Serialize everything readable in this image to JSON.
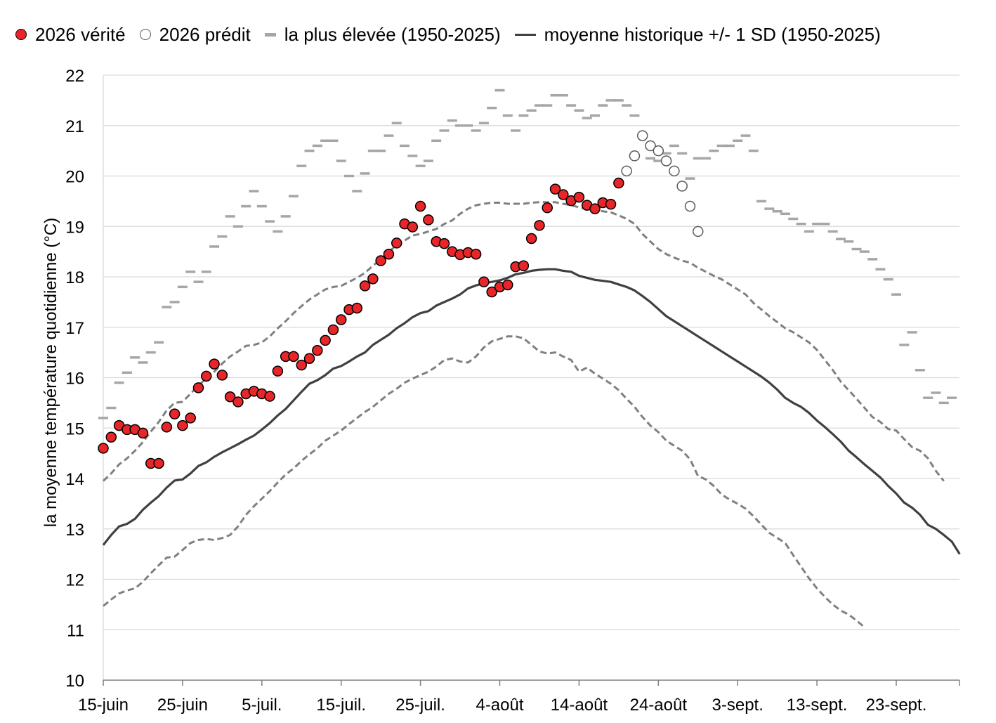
{
  "legend": {
    "truth": "2026 vérité",
    "predicted": "2026 prédit",
    "highest": "la plus élevée (1950-2025)",
    "mean": "moyenne historique +/- 1 SD (1950-2025)"
  },
  "colors": {
    "truth_fill": "#e8262a",
    "predicted_fill": "#ffffff",
    "highest": "#a6a6a6",
    "mean": "#404040",
    "sd": "#808080",
    "grid": "#d9d9d9"
  },
  "chart_data": {
    "type": "line",
    "title": "",
    "ylabel": "la moyenne température quotidienne (°C)",
    "xlabel": "",
    "ylim": [
      10,
      22
    ],
    "yticks": [
      10,
      11,
      12,
      13,
      14,
      15,
      16,
      17,
      18,
      19,
      20,
      21,
      22
    ],
    "x_range": [
      "15-juin",
      "30-sept."
    ],
    "x_tick_labels": [
      "15-juin",
      "25-juin",
      "5-juil.",
      "15-juil.",
      "25-juil.",
      "4-août",
      "14-août",
      "24-août",
      "3-sept.",
      "13-sept.",
      "23-sept."
    ],
    "grid": true,
    "legend_position": "top",
    "series": [
      {
        "name": "2026 vérité",
        "style": "markers",
        "start": "15-juin",
        "values": [
          14.6,
          14.82,
          15.05,
          14.97,
          14.97,
          14.9,
          14.3,
          14.3,
          15.02,
          15.28,
          15.05,
          15.2,
          15.8,
          16.03,
          16.27,
          16.05,
          15.62,
          15.52,
          15.68,
          15.73,
          15.68,
          15.63,
          16.13,
          16.42,
          16.42,
          16.25,
          16.38,
          16.54,
          16.74,
          16.95,
          17.15,
          17.35,
          17.38,
          17.82,
          17.96,
          18.32,
          18.45,
          18.67,
          19.05,
          18.99,
          19.4,
          19.13,
          18.7,
          18.66,
          18.5,
          18.44,
          18.48,
          18.45,
          17.9,
          17.7,
          17.8,
          17.84,
          18.2,
          18.22,
          18.76,
          19.02,
          19.37,
          19.74,
          19.63,
          19.51,
          19.58,
          19.42,
          19.35,
          19.47,
          19.44,
          19.86
        ]
      },
      {
        "name": "2026 prédit",
        "style": "markers",
        "start": "20-août",
        "values": [
          20.1,
          20.4,
          20.8,
          20.6,
          20.5,
          20.3,
          20.1,
          19.8,
          19.4,
          18.9
        ]
      },
      {
        "name": "la plus élevée (1950-2025)",
        "style": "dashes",
        "start": "15-juin",
        "values": [
          15.2,
          15.4,
          15.9,
          16.1,
          16.4,
          16.3,
          16.5,
          16.7,
          17.4,
          17.5,
          17.8,
          18.1,
          17.9,
          18.1,
          18.6,
          18.8,
          19.2,
          19.0,
          19.4,
          19.7,
          19.4,
          19.1,
          18.9,
          19.2,
          19.6,
          20.2,
          20.5,
          20.6,
          20.7,
          20.7,
          20.3,
          20.0,
          19.7,
          20.05,
          20.5,
          20.5,
          20.8,
          21.05,
          20.6,
          20.4,
          20.2,
          20.3,
          20.7,
          20.9,
          21.1,
          21.0,
          21.0,
          20.9,
          21.05,
          21.35,
          21.7,
          21.2,
          20.9,
          21.2,
          21.3,
          21.4,
          21.4,
          21.6,
          21.6,
          21.4,
          21.3,
          21.15,
          21.2,
          21.4,
          21.5,
          21.5,
          21.4,
          21.2,
          20.8,
          20.35,
          20.3,
          20.45,
          20.6,
          20.45,
          19.95,
          20.35,
          20.35,
          20.5,
          20.6,
          20.6,
          20.7,
          20.8,
          20.5,
          19.5,
          19.35,
          19.3,
          19.25,
          19.15,
          19.05,
          18.9,
          19.05,
          19.05,
          18.9,
          18.75,
          18.7,
          18.55,
          18.5,
          18.35,
          18.15,
          17.95,
          17.65,
          16.65,
          16.9,
          16.15,
          15.6,
          15.7,
          15.5,
          15.6
        ]
      },
      {
        "name": "moyenne historique +/- 1 SD (1950-2025)",
        "style": "solid",
        "start": "15-juin",
        "values": [
          12.68,
          12.88,
          13.05,
          13.1,
          13.2,
          13.38,
          13.52,
          13.65,
          13.82,
          13.96,
          13.98,
          14.1,
          14.25,
          14.32,
          14.43,
          14.52,
          14.6,
          14.68,
          14.77,
          14.85,
          14.97,
          15.1,
          15.25,
          15.38,
          15.55,
          15.72,
          15.88,
          15.95,
          16.05,
          16.18,
          16.23,
          16.32,
          16.42,
          16.5,
          16.65,
          16.75,
          16.85,
          16.98,
          17.08,
          17.2,
          17.28,
          17.32,
          17.43,
          17.5,
          17.57,
          17.65,
          17.77,
          17.83,
          17.87,
          17.9,
          17.93,
          17.98,
          18.05,
          18.08,
          18.12,
          18.14,
          18.15,
          18.15,
          18.12,
          18.1,
          18.02,
          17.98,
          17.94,
          17.92,
          17.9,
          17.85,
          17.8,
          17.73,
          17.62,
          17.5,
          17.36,
          17.22,
          17.12,
          17.02,
          16.92,
          16.82,
          16.72,
          16.62,
          16.52,
          16.42,
          16.32,
          16.22,
          16.12,
          16.02,
          15.9,
          15.76,
          15.6,
          15.5,
          15.42,
          15.3,
          15.15,
          15.02,
          14.88,
          14.73,
          14.55,
          14.42,
          14.28,
          14.15,
          14.02,
          13.85,
          13.7,
          13.52,
          13.42,
          13.28,
          13.08,
          13.0,
          12.88,
          12.75,
          12.5
        ]
      },
      {
        "name": "+1 SD",
        "style": "dashed",
        "start": "15-juin",
        "values": [
          13.95,
          14.1,
          14.28,
          14.4,
          14.55,
          14.72,
          14.93,
          15.12,
          15.35,
          15.5,
          15.52,
          15.68,
          15.85,
          15.98,
          16.12,
          16.28,
          16.42,
          16.52,
          16.63,
          16.65,
          16.7,
          16.82,
          16.98,
          17.12,
          17.28,
          17.42,
          17.55,
          17.65,
          17.75,
          17.8,
          17.82,
          17.9,
          17.98,
          18.08,
          18.22,
          18.35,
          18.5,
          18.62,
          18.72,
          18.82,
          18.85,
          18.9,
          18.95,
          19.05,
          19.12,
          19.25,
          19.35,
          19.42,
          19.45,
          19.47,
          19.47,
          19.45,
          19.45,
          19.45,
          19.47,
          19.48,
          19.48,
          19.48,
          19.45,
          19.42,
          19.38,
          19.35,
          19.32,
          19.3,
          19.28,
          19.22,
          19.15,
          19.05,
          18.85,
          18.7,
          18.55,
          18.45,
          18.38,
          18.32,
          18.28,
          18.18,
          18.1,
          18.02,
          17.95,
          17.85,
          17.75,
          17.65,
          17.48,
          17.35,
          17.22,
          17.1,
          16.98,
          16.9,
          16.8,
          16.7,
          16.55,
          16.35,
          16.15,
          15.92,
          15.75,
          15.58,
          15.4,
          15.22,
          15.12,
          14.98,
          14.95,
          14.78,
          14.62,
          14.55,
          14.4,
          14.15,
          13.95
        ]
      },
      {
        "name": "-1 SD",
        "style": "dashed",
        "start": "15-juin",
        "values": [
          11.47,
          11.6,
          11.72,
          11.78,
          11.82,
          11.95,
          12.12,
          12.28,
          12.43,
          12.45,
          12.58,
          12.72,
          12.78,
          12.8,
          12.78,
          12.82,
          12.88,
          13.05,
          13.28,
          13.45,
          13.6,
          13.75,
          13.92,
          14.08,
          14.2,
          14.35,
          14.48,
          14.6,
          14.75,
          14.85,
          14.95,
          15.08,
          15.2,
          15.32,
          15.42,
          15.55,
          15.68,
          15.78,
          15.9,
          15.98,
          16.05,
          16.12,
          16.22,
          16.35,
          16.38,
          16.32,
          16.3,
          16.42,
          16.6,
          16.72,
          16.77,
          16.82,
          16.82,
          16.78,
          16.65,
          16.52,
          16.48,
          16.5,
          16.42,
          16.35,
          16.12,
          16.2,
          16.08,
          15.98,
          15.88,
          15.75,
          15.58,
          15.42,
          15.22,
          15.05,
          14.92,
          14.75,
          14.65,
          14.55,
          14.38,
          14.05,
          13.98,
          13.85,
          13.68,
          13.58,
          13.5,
          13.4,
          13.25,
          13.08,
          12.92,
          12.82,
          12.72,
          12.48,
          12.25,
          12.02,
          11.82,
          11.65,
          11.5,
          11.38,
          11.3,
          11.18,
          11.05
        ]
      }
    ]
  }
}
